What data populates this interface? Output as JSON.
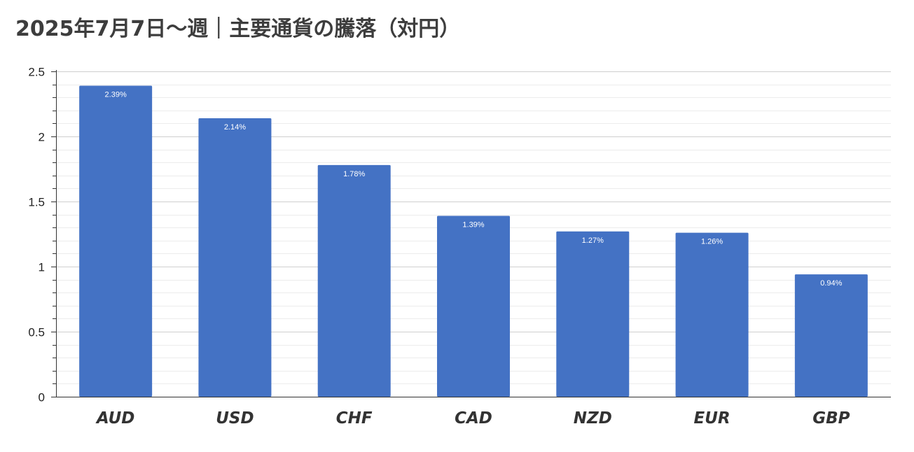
{
  "chart_data": {
    "type": "bar",
    "title": "2025年7月7日～週｜主要通貨の騰落（対円）",
    "categories": [
      "AUD",
      "USD",
      "CHF",
      "CAD",
      "NZD",
      "EUR",
      "GBP"
    ],
    "values": [
      2.39,
      2.14,
      1.78,
      1.39,
      1.27,
      1.26,
      0.94
    ],
    "data_labels": [
      "2.39%",
      "2.14%",
      "1.78%",
      "1.39%",
      "1.27%",
      "1.26%",
      "0.94%"
    ],
    "y_ticks": [
      "0",
      "0.5",
      "1",
      "1.5",
      "2",
      "2.5"
    ],
    "ylim": [
      0,
      2.5
    ],
    "xlabel": "",
    "ylabel": "",
    "grid": true,
    "legend": "none",
    "bar_color": "#4472c4"
  }
}
